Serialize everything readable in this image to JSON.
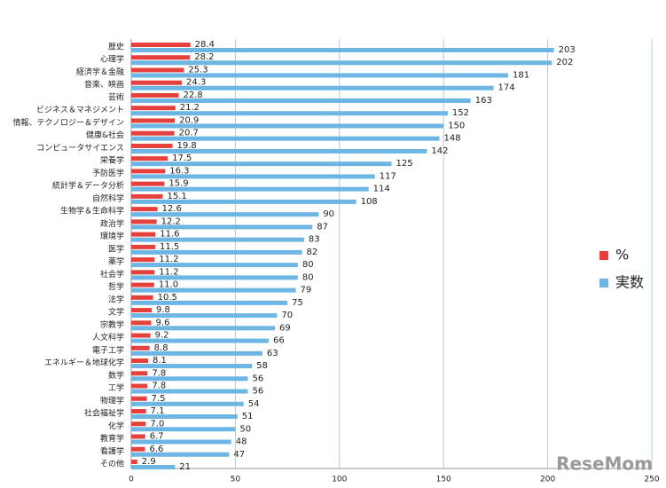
{
  "chart_data": {
    "type": "bar",
    "orientation": "horizontal",
    "categories": [
      "歴史",
      "心理学",
      "経済学＆金融",
      "音楽、映画",
      "芸術",
      "ビジネス＆マネジメント",
      "情報、テクノロジー＆デザイン",
      "健康&社会",
      "コンピュータサイエンス",
      "栄養学",
      "予防医学",
      "統計学＆データ分析",
      "自然科学",
      "生物学＆生命科学",
      "政治学",
      "環境学",
      "医学",
      "薬学",
      "社会学",
      "哲学",
      "法学",
      "文学",
      "宗教学",
      "人文科学",
      "電子工学",
      "エネルギー＆地球化学",
      "数学",
      "工学",
      "物理学",
      "社会福祉学",
      "化学",
      "教育学",
      "看護学",
      "その他"
    ],
    "series": [
      {
        "name": "%",
        "color": "#e5403b",
        "values": [
          28.4,
          28.2,
          25.3,
          24.3,
          22.8,
          21.2,
          20.9,
          20.7,
          19.8,
          17.5,
          16.3,
          15.9,
          15.1,
          12.6,
          12.2,
          11.6,
          11.5,
          11.2,
          11.2,
          11.0,
          10.5,
          9.8,
          9.6,
          9.2,
          8.8,
          8.1,
          7.8,
          7.8,
          7.5,
          7.1,
          7.0,
          6.7,
          6.6,
          2.9
        ],
        "value_labels": [
          "28.4",
          "28.2",
          "25.3",
          "24.3",
          "22.8",
          "21.2",
          "20.9",
          "20.7",
          "19.8",
          "17.5",
          "16.3",
          "15.9",
          "15.1",
          "12.6",
          "12.2",
          "11.6",
          "11.5",
          "11.2",
          "11.2",
          "11.0",
          "10.5",
          "9.8",
          "9.6",
          "9.2",
          "8.8",
          "8.1",
          "7.8",
          "7.8",
          "7.5",
          "7.1",
          "7.0",
          "6.7",
          "6.6",
          "2.9"
        ]
      },
      {
        "name": "実数",
        "color": "#6db6e4",
        "values": [
          203,
          202,
          181,
          174,
          163,
          152,
          150,
          148,
          142,
          125,
          117,
          114,
          108,
          90,
          87,
          83,
          82,
          80,
          80,
          79,
          75,
          70,
          69,
          66,
          63,
          58,
          56,
          56,
          54,
          51,
          50,
          48,
          47,
          21
        ]
      }
    ],
    "xlim": [
      0,
      250
    ],
    "xticks": [
      0,
      50,
      100,
      150,
      200,
      250
    ],
    "grid": true,
    "legend": "right",
    "watermark": "ReseMom"
  }
}
